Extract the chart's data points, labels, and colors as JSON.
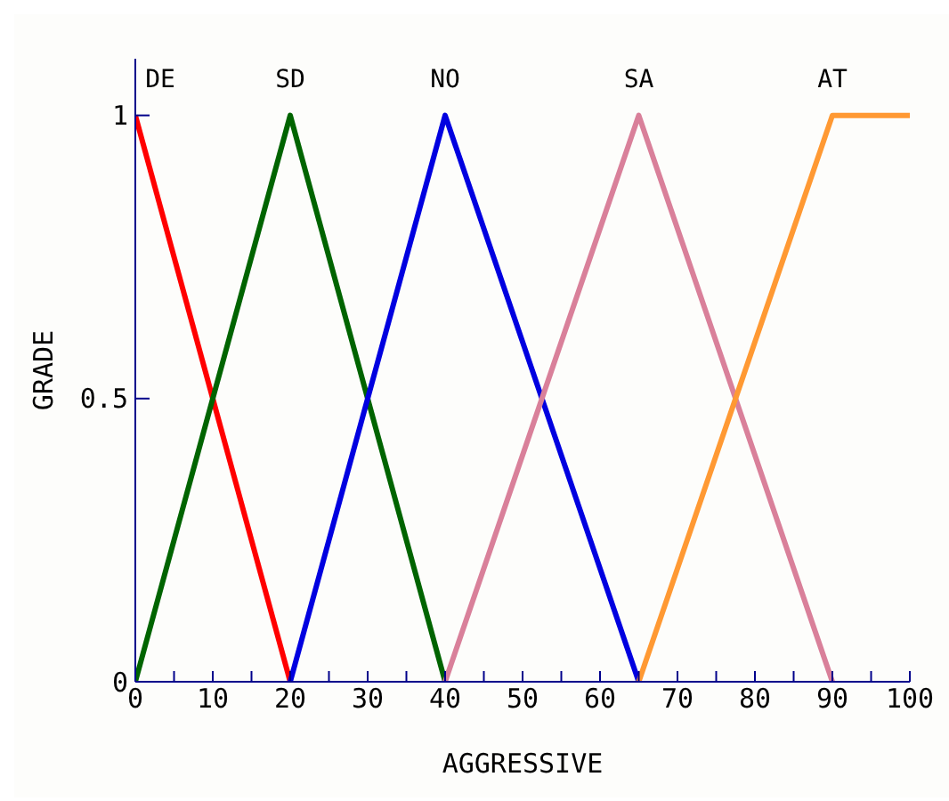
{
  "chart_data": {
    "type": "line",
    "xlabel": "AGGRESSIVE",
    "ylabel": "GRADE",
    "xlim": [
      0,
      100
    ],
    "xticks": [
      0,
      {
        "value": 5,
        "label": null
      },
      10,
      {
        "value": 15,
        "label": null
      },
      20,
      {
        "value": 25,
        "label": null
      },
      30,
      {
        "value": 35,
        "label": null
      },
      40,
      {
        "value": 45,
        "label": null
      },
      50,
      {
        "value": 55,
        "label": null
      },
      60,
      {
        "value": 65,
        "label": null
      },
      70,
      {
        "value": 75,
        "label": null
      },
      80,
      {
        "value": 85,
        "label": null
      },
      90,
      {
        "value": 95,
        "label": null
      },
      100
    ],
    "ylim": [
      0,
      1.1
    ],
    "yticks": [
      0,
      0.5,
      1
    ],
    "grid": false,
    "legend": false,
    "marker": "none",
    "line_style": "solid",
    "series": [
      {
        "name": "DE",
        "color": "#ff0000",
        "x": [
          0,
          20
        ],
        "values": [
          1,
          0
        ]
      },
      {
        "name": "SD",
        "color": "#006400",
        "x": [
          0,
          20,
          40
        ],
        "values": [
          0,
          1,
          0
        ]
      },
      {
        "name": "NO",
        "color": "#0000e0",
        "x": [
          20,
          40,
          65
        ],
        "values": [
          0,
          1,
          0
        ]
      },
      {
        "name": "SA",
        "color": "#d9809a",
        "x": [
          40,
          65,
          90
        ],
        "values": [
          0,
          1,
          0
        ]
      },
      {
        "name": "AT",
        "color": "#ff9933",
        "x": [
          65,
          90,
          100
        ],
        "values": [
          0,
          1,
          1
        ]
      }
    ]
  }
}
